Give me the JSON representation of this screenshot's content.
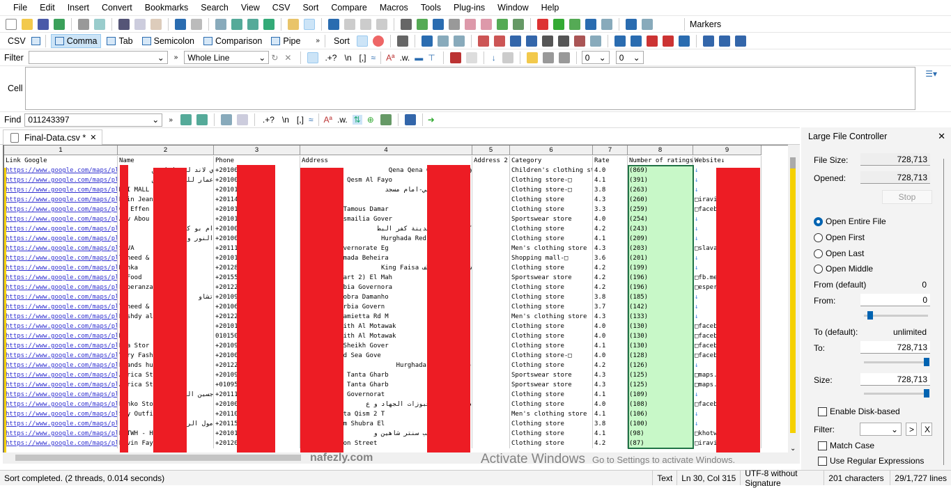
{
  "menu": [
    "File",
    "Edit",
    "Insert",
    "Convert",
    "Bookmarks",
    "Search",
    "View",
    "CSV",
    "Sort",
    "Compare",
    "Macros",
    "Tools",
    "Plug-ins",
    "Window",
    "Help"
  ],
  "toolbar": {
    "markers_label": "Markers"
  },
  "csvbar": {
    "csv_label": "CSV",
    "modes": [
      "Comma",
      "Tab",
      "Semicolon",
      "Comparison",
      "Pipe"
    ],
    "active_mode": "Comma",
    "sort_label": "Sort"
  },
  "filterbar": {
    "label": "Filter",
    "value": "",
    "scope": "Whole Line",
    "regex_tokens": [
      ".+?",
      "\\n",
      "[,]"
    ],
    "num1": "0",
    "num2": "0"
  },
  "cell": {
    "label": "Cell",
    "value": ""
  },
  "findbar": {
    "label": "Find",
    "value": "011243397",
    "tokens": [
      ".+?",
      "\\n",
      "[,]"
    ]
  },
  "tab": {
    "title": "Final-Data.csv *"
  },
  "grid": {
    "column_numbers": [
      "1",
      "2",
      "3",
      "4",
      "5",
      "6",
      "7",
      "8",
      "9"
    ],
    "headers": [
      "Link Google",
      "Name",
      "Phone",
      "Address",
      "Address 2",
      "Category",
      "Rate",
      "Number of ratings",
      "Website↓"
    ],
    "rows": [
      [
        "https://www.google.com/maps/plac",
        "ي لاند لم     فاملي ص",
        "+201006",
        "ق  Qena  Qena Governorat",
        "",
        "Children's clothing stor",
        "4.0",
        "(869)",
        "↓"
      ],
      [
        "https://www.google.com/maps/plac",
        "عمار للم     والكوتش",
        "+201006",
        "nnamed Road  Qesm Al Fayo",
        "",
        "Clothing store-□",
        "4.1",
        "(391)",
        "↓"
      ],
      [
        "https://www.google.com/maps/plac",
        "M I MALL",
        "+201014",
        "السوق العمومي-امام مسجد",
        "",
        "Clothing store-□",
        "3.8",
        "(263)",
        "↓"
      ],
      [
        "https://www.google.com/maps/plac",
        "Rvin Jean      ex2",
        "+201140",
        "",
        "",
        "Clothing store",
        "4.3",
        "(260)",
        "□iravin"
      ],
      [
        "https://www.google.com/maps/plac",
        "Or Effen",
        "+201014",
        "mmed Oraby  Tamous  Damar",
        "",
        "Clothing store",
        "3.3",
        "(259)",
        "□facebo"
      ],
      [
        "https://www.google.com/maps/plac",
        "Aiv Abou",
        "+201015",
        "smailia 1  Ismailia Gover",
        "",
        "Sportswear store",
        "4.0",
        "(254)",
        "↓"
      ],
      [
        "https://www.google.com/maps/plac",
        "ام بو     كفر البط",
        "+201004",
        "كفر البطيخ  مدينة كفر البط",
        "",
        "Clothing store",
        "4.2",
        "(243)",
        "↓"
      ],
      [
        "https://www.google.com/maps/plac",
        "النور والتو",
        "+201003",
        "الجا  Hurghada  Red Sea Go",
        "",
        "Clothing store",
        "4.1",
        "(209)",
        "↓"
      ],
      [
        "https://www.google.com/maps/plac",
        "SAVA",
        "+201111",
        " Ismailia Governorate  Eg",
        "",
        "Men's clothing store",
        "4.3",
        "(203)",
        "□slavac"
      ],
      [
        "https://www.google.com/maps/plac",
        "Twheed &",
        "+201010",
        "eban  Kom Hamada  Beheira",
        "",
        "Shopping mall-□",
        "3.6",
        "(201)",
        "↓"
      ],
      [
        "https://www.google.com/maps/plac",
        "Mshka",
        "+201282",
        "شارع احمد لطف  King Faisa",
        "",
        "Clothing store",
        "4.2",
        "(199)",
        "↓"
      ],
      [
        "https://www.google.com/maps/plac",
        "I Food",
        "+201557",
        "Al Kubra (Part 2)  El Mah",
        "",
        "Sportswear store",
        "4.2",
        "(196)",
        "□fb.me"
      ],
      [
        "https://www.google.com/maps/plac",
        "Esperanza",
        "+201220",
        "ur  Al-Qalyubia Governora",
        "",
        "Clothing store",
        "4.2",
        "(196)",
        "□espera"
      ],
      [
        "https://www.google.com/maps/plac",
        "تشاو",
        "+201093",
        "l-Orouba  Shobra  Damanho",
        "",
        "Clothing store",
        "3.8",
        "(185)",
        "↓"
      ],
      [
        "https://www.google.com/maps/plac",
        "Twheed &",
        "+201069",
        "2  Tanta  Gharbia Govern",
        "",
        "Clothing store",
        "3.7",
        "(142)",
        "↓"
      ],
      [
        "https://www.google.com/maps/plac",
        "Rushdy al      ents",
        "+201222",
        "ansoura - Damietta Rd  M",
        "",
        "Men's clothing store",
        "4.3",
        "(133)",
        "↓"
      ],
      [
        "https://www.google.com/maps/plac",
        "Ey",
        "+201015",
        "en el Ass With Al Motawak",
        "",
        "Clothing store",
        "4.0",
        "(130)",
        "□facebo"
      ],
      [
        "https://www.google.com/maps/plac",
        "My",
        "0101504",
        "en el Ass With Al Motawak",
        "",
        "Clothing store",
        "4.0",
        "(130)",
        "□facebo"
      ],
      [
        "https://www.google.com/maps/plac",
        "Nia Stor",
        "+201092",
        "uk  Kafr El-Sheikh Gover",
        "",
        "Clothing store",
        "4.1",
        "(130)",
        "□facebo"
      ],
      [
        "https://www.google.com/maps/plac",
        "Very Fash      da",
        "+201007",
        " Hurghada  Red Sea Gove",
        "",
        "Clothing store-□",
        "4.0",
        "(128)",
        "□facebo"
      ],
      [
        "https://www.google.com/maps/plac",
        "Brands hur",
        "+201224",
        "قسم الغردقة  Hurghada",
        "",
        "Clothing store",
        "4.2",
        "(126)",
        "↓"
      ],
      [
        "https://www.google.com/maps/plac",
        "Africa Sto",
        "+201099",
        "anta Qism 2  Tanta  Gharb",
        "",
        "Sportswear store",
        "4.3",
        "(125)",
        "□maps.a"
      ],
      [
        "https://www.google.com/maps/plac",
        "Africa Sto",
        "+0109527",
        "anta Qism 2  Tanta  Gharb",
        "",
        "Sportswear store",
        "4.3",
        "(125)",
        "□maps.a"
      ],
      [
        "https://www.google.com/maps/plac",
        "جسين التج",
        "+201110",
        " Minya  Minya Governorat",
        "",
        "Clothing store",
        "4.1",
        "(109)",
        "↓"
      ],
      [
        "https://www.google.com/maps/plac",
        "Benko Sto",
        "+201007",
        "دية بجانب مخبوزات الجهاد و ع",
        "",
        "Clothing store",
        "4.0",
        "(108)",
        "□facebo"
      ],
      [
        "https://www.google.com/maps/plac",
        "Sky Outfi",
        "+201106",
        "lopatra  Tanta Qism 2  T",
        "",
        "Men's clothing store",
        "4.1",
        "(106)",
        "↓"
      ],
      [
        "https://www.google.com/maps/plac",
        "مول الر",
        "+201157",
        "obarak  Begam  Shubra El",
        "",
        "Clothing store",
        "3.8",
        "(100)",
        "↓"
      ],
      [
        "https://www.google.com/maps/plac",
        "KOTWH - H      H",
        "+201015",
        "الرئيسي بجانب سنتر شاهين و",
        "",
        "Clothing store",
        "4.1",
        "(98)",
        "□khotwh"
      ],
      [
        "https://www.google.com/maps/plac",
        "Ravin Fayo",
        "+201208",
        "Fa  Al Ma'amon Street",
        "",
        "Clothing store",
        "4.2",
        "(87)",
        "□iravin"
      ]
    ]
  },
  "panel": {
    "title": "Large File Controller",
    "file_size_label": "File Size:",
    "file_size": "728,713",
    "opened_label": "Opened:",
    "opened": "728,713",
    "stop_label": "Stop",
    "options": [
      "Open Entire File",
      "Open First",
      "Open Last",
      "Open Middle"
    ],
    "selected_option": "Open Entire File",
    "from_default_label": "From (default)",
    "from_default": "0",
    "from_label": "From:",
    "from": "0",
    "to_default_label": "To (default):",
    "to_default": "unlimited",
    "to_label": "To:",
    "to": "728,713",
    "size_label": "Size:",
    "size": "728,713",
    "enable_disk_label": "Enable Disk-based",
    "filter_label": "Filter:",
    "filter_btn1": ">",
    "filter_btn2": "X",
    "match_case_label": "Match Case",
    "regex_label": "Use Regular Expressions"
  },
  "status": {
    "message": "Sort completed. (2 threads, 0.014 seconds)",
    "mode": "Text",
    "position": "Ln 30, Col 315",
    "encoding": "UTF-8 without Signature",
    "chars": "201 characters",
    "lines": "29/1,727 lines"
  },
  "overlay": {
    "activate_title": "Activate Windows",
    "activate_sub": "Go to Settings to activate Windows.",
    "watermark": "nafezly.com"
  }
}
